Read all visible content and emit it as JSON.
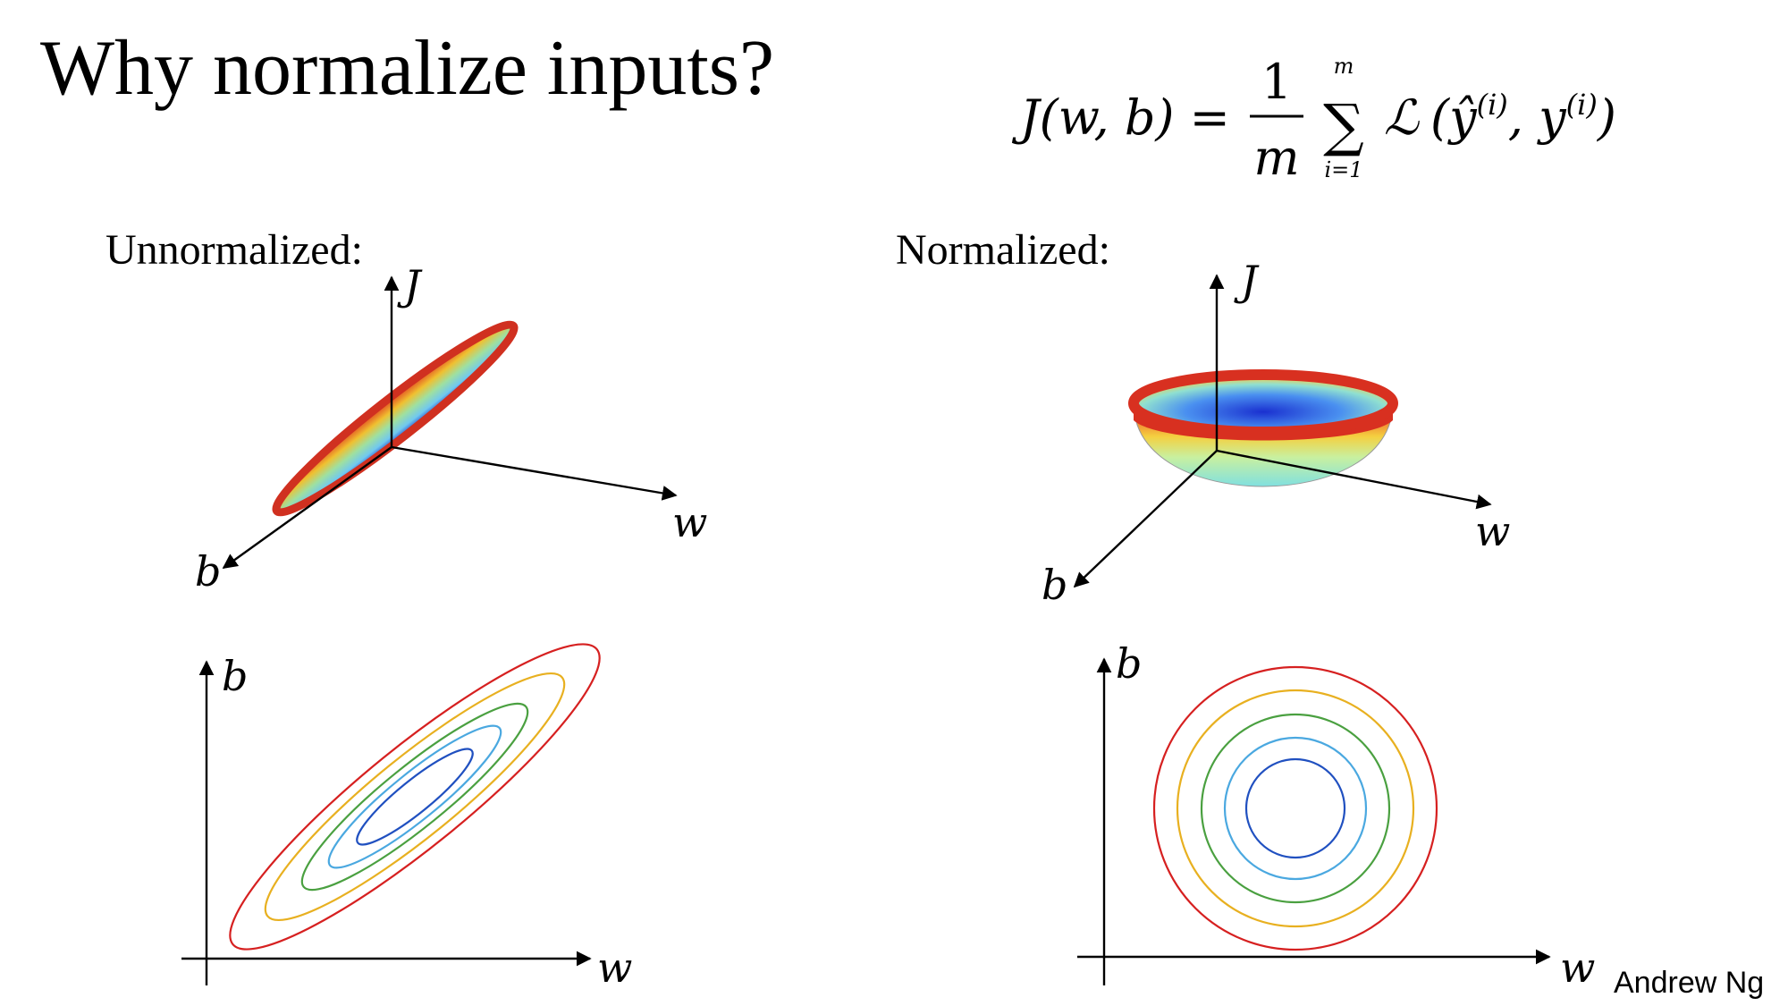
{
  "title": "Why normalize inputs?",
  "formula": {
    "lhs": "J(w, b) =",
    "numerator": "1",
    "denominator": "m",
    "sum": "∑",
    "upper": "m",
    "lower": "i=1",
    "loss": "ℒ",
    "args": [
      "(ŷ",
      "(i)",
      ", y",
      "(i)",
      ")"
    ]
  },
  "left": {
    "label": "Unnormalized:",
    "surface_axes": {
      "J": "J",
      "w": "w",
      "b": "b"
    },
    "contour_axes": {
      "b": "b",
      "w": "w"
    }
  },
  "right": {
    "label": "Normalized:",
    "surface_axes": {
      "J": "J",
      "w": "w",
      "b": "b"
    },
    "contour_axes": {
      "b": "b",
      "w": "w"
    }
  },
  "footer": "Andrew Ng"
}
